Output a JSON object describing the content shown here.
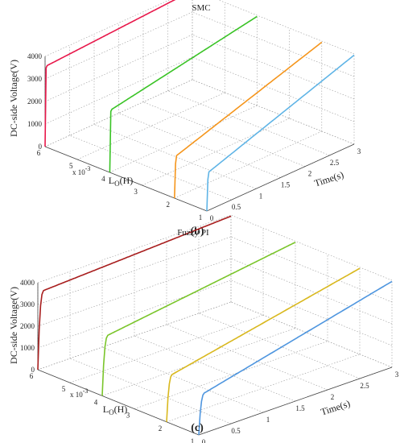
{
  "chart_data": [
    {
      "type": "line",
      "panel": "(b)",
      "title": "SMC",
      "zlabel": "DC-side Voltage(V)",
      "xlabel": "Time(s)",
      "ylabel": "L",
      "ylabel_sub": "O",
      "ylabel_unit": "(H)",
      "y_multiplier": "x 10",
      "y_multiplier_exp": "-3",
      "xlim": [
        0,
        3
      ],
      "ylim": [
        1,
        6
      ],
      "zlim": [
        0,
        4000
      ],
      "x_ticks": [
        "0",
        "0.5",
        "1",
        "1.5",
        "2",
        "2.5",
        "3"
      ],
      "y_ticks": [
        "1",
        "2",
        "3",
        "4",
        "5",
        "6"
      ],
      "z_ticks": [
        "0",
        "1000",
        "2000",
        "3000",
        "4000"
      ],
      "series": [
        {
          "L": 6,
          "color": "#e8174a",
          "rise_time": 0.03,
          "v_start": 3550,
          "v_end": 3950
        },
        {
          "L": 4,
          "color": "#39c325",
          "rise_time": 0.03,
          "v_start": 2750,
          "v_end": 3950
        },
        {
          "L": 2,
          "color": "#f5951b",
          "rise_time": 0.05,
          "v_start": 1850,
          "v_end": 3950
        },
        {
          "L": 1,
          "color": "#5fb4e6",
          "rise_time": 0.05,
          "v_start": 1700,
          "v_end": 3950
        }
      ]
    },
    {
      "type": "line",
      "panel": "(c)",
      "title": "Fuzzy PI",
      "zlabel": "DC-side Voltage(V)",
      "xlabel": "Time(s)",
      "ylabel": "L",
      "ylabel_sub": "O",
      "ylabel_unit": "(H)",
      "y_multiplier": "x 10",
      "y_multiplier_exp": "-3",
      "xlim": [
        0,
        3
      ],
      "ylim": [
        1,
        6
      ],
      "zlim": [
        0,
        4000
      ],
      "x_ticks": [
        "0",
        "0.5",
        "1",
        "1.5",
        "2",
        "2.5",
        "3"
      ],
      "y_ticks": [
        "1",
        "2",
        "3",
        "4",
        "5",
        "6"
      ],
      "z_ticks": [
        "0",
        "1000",
        "2000",
        "3000",
        "4000"
      ],
      "series": [
        {
          "L": 6,
          "color": "#a81e1e",
          "rise_time": 0.1,
          "v_start": 3550,
          "v_end": 3950
        },
        {
          "L": 4,
          "color": "#7ac52a",
          "rise_time": 0.1,
          "v_start": 2700,
          "v_end": 3950
        },
        {
          "L": 2,
          "color": "#d9b81e",
          "rise_time": 0.1,
          "v_start": 2100,
          "v_end": 3950
        },
        {
          "L": 1,
          "color": "#4f96df",
          "rise_time": 0.1,
          "v_start": 1850,
          "v_end": 3950
        }
      ]
    }
  ]
}
